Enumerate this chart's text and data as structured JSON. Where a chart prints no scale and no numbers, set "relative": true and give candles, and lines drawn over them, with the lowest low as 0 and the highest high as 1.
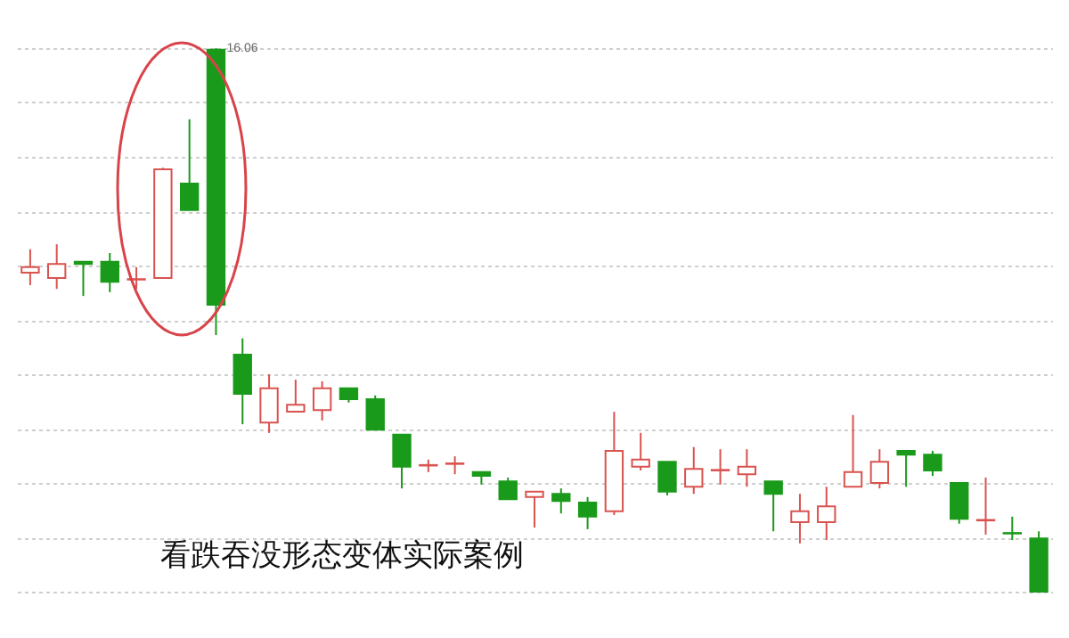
{
  "chart_data": {
    "type": "candlestick",
    "relative": true,
    "grid": "y",
    "categories": [
      null,
      null,
      null,
      null,
      null,
      null,
      null,
      null,
      null,
      null,
      null,
      null,
      null,
      null,
      null,
      null,
      null,
      null,
      null,
      null,
      null,
      null,
      null,
      null,
      null,
      null,
      null,
      null,
      null,
      null,
      null,
      null,
      null,
      null,
      null,
      null,
      null,
      null,
      null
    ],
    "ohlc": [
      [
        0.587,
        0.63,
        0.564,
        0.597
      ],
      [
        0.577,
        0.639,
        0.557,
        0.603
      ],
      [
        0.607,
        0.607,
        0.544,
        0.603
      ],
      [
        0.607,
        0.623,
        0.551,
        0.57
      ],
      [
        0.574,
        0.597,
        0.557,
        0.575
      ],
      [
        0.577,
        0.78,
        0.577,
        0.777
      ],
      [
        0.751,
        0.869,
        0.702,
        0.702
      ],
      [
        0.997,
        1,
        0.472,
        0.528
      ],
      [
        0.436,
        0.466,
        0.308,
        0.364
      ],
      [
        0.311,
        0.4,
        0.292,
        0.374
      ],
      [
        0.331,
        0.39,
        0.331,
        0.344
      ],
      [
        0.334,
        0.387,
        0.315,
        0.374
      ],
      [
        0.374,
        0.374,
        0.348,
        0.354
      ],
      [
        0.354,
        0.361,
        0.298,
        0.298
      ],
      [
        0.289,
        0.289,
        0.19,
        0.23
      ],
      [
        0.232,
        0.243,
        0.22,
        0.233
      ],
      [
        0.235,
        0.249,
        0.216,
        0.236
      ],
      [
        0.22,
        0.22,
        0.197,
        0.213
      ],
      [
        0.203,
        0.21,
        0.17,
        0.17
      ],
      [
        0.174,
        0.184,
        0.118,
        0.184
      ],
      [
        0.18,
        0.19,
        0.144,
        0.167
      ],
      [
        0.164,
        0.174,
        0.115,
        0.138
      ],
      [
        0.148,
        0.331,
        0.141,
        0.259
      ],
      [
        0.23,
        0.292,
        0.223,
        0.243
      ],
      [
        0.239,
        0.239,
        0.177,
        0.184
      ],
      [
        0.193,
        0.266,
        0.18,
        0.226
      ],
      [
        0.223,
        0.262,
        0.197,
        0.224
      ],
      [
        0.216,
        0.262,
        0.193,
        0.23
      ],
      [
        0.203,
        0.203,
        0.111,
        0.18
      ],
      [
        0.128,
        0.18,
        0.089,
        0.148
      ],
      [
        0.128,
        0.193,
        0.095,
        0.157
      ],
      [
        0.193,
        0.325,
        0.193,
        0.22
      ],
      [
        0.2,
        0.262,
        0.19,
        0.239
      ],
      [
        0.259,
        0.259,
        0.193,
        0.252
      ],
      [
        0.252,
        0.259,
        0.213,
        0.223
      ],
      [
        0.2,
        0.2,
        0.125,
        0.134
      ],
      [
        0.131,
        0.21,
        0.105,
        0.132
      ],
      [
        0.108,
        0.138,
        0.095,
        0.107
      ],
      [
        0.098,
        0.111,
        0,
        0
      ]
    ],
    "colors": [
      "#d9534f",
      "#d9534f",
      "#1a9a1a",
      "#1a9a1a",
      "#d9534f",
      "#d9534f",
      "#1a9a1a",
      "#1a9a1a",
      "#1a9a1a",
      "#d9534f",
      "#d9534f",
      "#d9534f",
      "#1a9a1a",
      "#1a9a1a",
      "#1a9a1a",
      "#d9534f",
      "#d9534f",
      "#1a9a1a",
      "#1a9a1a",
      "#d9534f",
      "#1a9a1a",
      "#1a9a1a",
      "#d9534f",
      "#d9534f",
      "#1a9a1a",
      "#d9534f",
      "#d9534f",
      "#d9534f",
      "#1a9a1a",
      "#d9534f",
      "#d9534f",
      "#d9534f",
      "#d9534f",
      "#1a9a1a",
      "#1a9a1a",
      "#1a9a1a",
      "#d9534f",
      "#1a9a1a",
      "#1a9a1a"
    ],
    "annotations": [
      "16.06",
      "看跌吞没形态变体实际案例"
    ]
  }
}
